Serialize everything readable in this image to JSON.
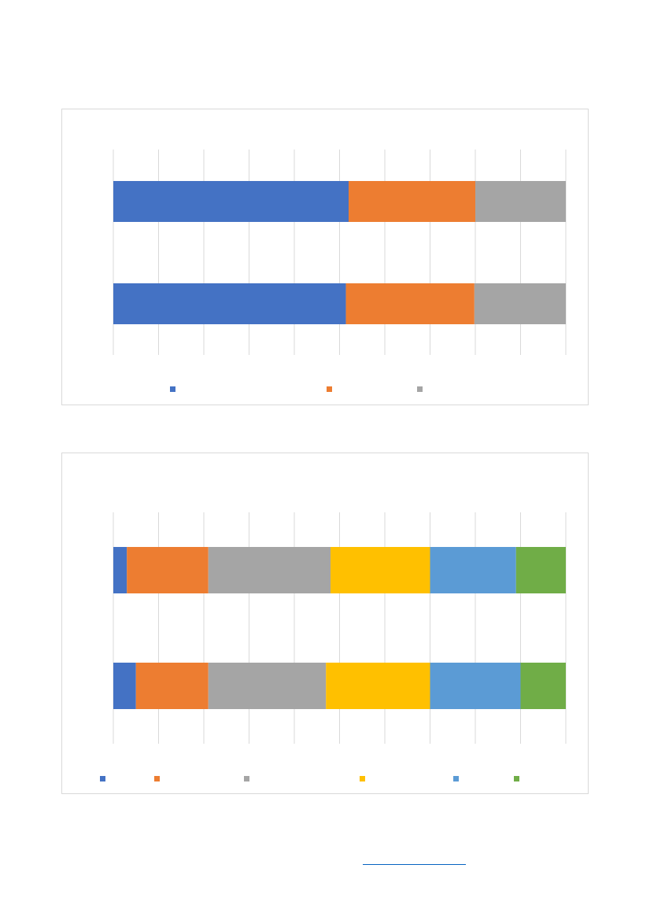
{
  "chart_data": [
    {
      "type": "bar",
      "orientation": "horizontal",
      "stacked": "percent",
      "categories": [
        "",
        ""
      ],
      "series": [
        {
          "color": "#4472c4",
          "values": [
            52,
            51.4
          ]
        },
        {
          "color": "#ed7d31",
          "values": [
            28,
            28.4
          ]
        },
        {
          "color": "#a5a5a5",
          "values": [
            20,
            20.2
          ]
        }
      ],
      "xlim": [
        0,
        100
      ],
      "grid": true,
      "legend": "bottom"
    },
    {
      "type": "bar",
      "orientation": "horizontal",
      "stacked": "percent",
      "categories": [
        "",
        ""
      ],
      "series": [
        {
          "color": "#4472c4",
          "values": [
            3,
            5
          ]
        },
        {
          "color": "#ed7d31",
          "values": [
            18,
            16
          ]
        },
        {
          "color": "#a5a5a5",
          "values": [
            27,
            26
          ]
        },
        {
          "color": "#ffc000",
          "values": [
            22,
            23
          ]
        },
        {
          "color": "#5b9bd5",
          "values": [
            19,
            20
          ]
        },
        {
          "color": "#70ad47",
          "values": [
            11,
            10
          ]
        }
      ],
      "xlim": [
        0,
        100
      ],
      "grid": true,
      "legend": "bottom"
    }
  ],
  "footer": {
    "link_text": ""
  }
}
